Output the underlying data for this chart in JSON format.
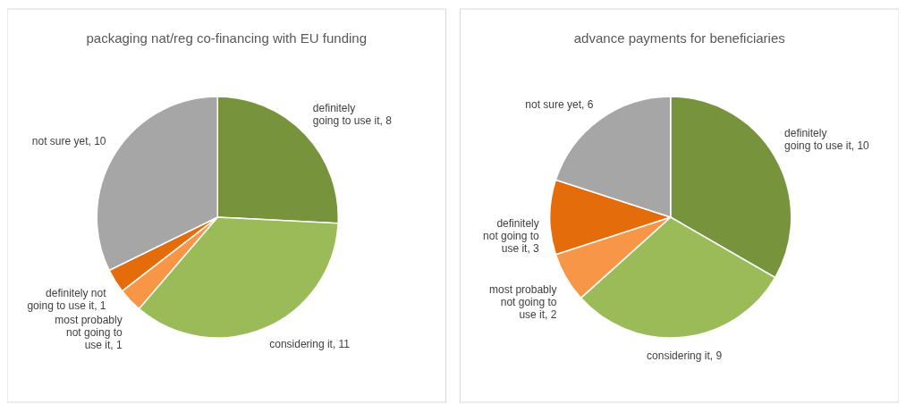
{
  "chart_data": [
    {
      "type": "pie",
      "title": "packaging nat/reg co-financing with EU funding",
      "categories": [
        "definitely going to use it",
        "considering it",
        "most probably not going to use it",
        "definitely not going to use it",
        "not sure yet"
      ],
      "values": [
        8,
        11,
        1,
        1,
        10
      ],
      "value_labels": [
        ", 8",
        ", 11",
        ", 1",
        ", 1",
        ", 10"
      ],
      "colors": [
        "#77933c",
        "#9bbb59",
        "#f79646",
        "#e46c0a",
        "#a6a6a6"
      ]
    },
    {
      "type": "pie",
      "title": "advance payments for beneficiaries",
      "categories": [
        "definitely going to use it",
        "considering it",
        "most probably not going to use it",
        "definitely not going to use it",
        "not sure yet"
      ],
      "values": [
        10,
        9,
        2,
        3,
        6
      ],
      "value_labels": [
        ", 10",
        ", 9",
        ", 2",
        ", 3",
        ", 6"
      ],
      "colors": [
        "#77933c",
        "#9bbb59",
        "#f79646",
        "#e46c0a",
        "#a6a6a6"
      ]
    }
  ]
}
